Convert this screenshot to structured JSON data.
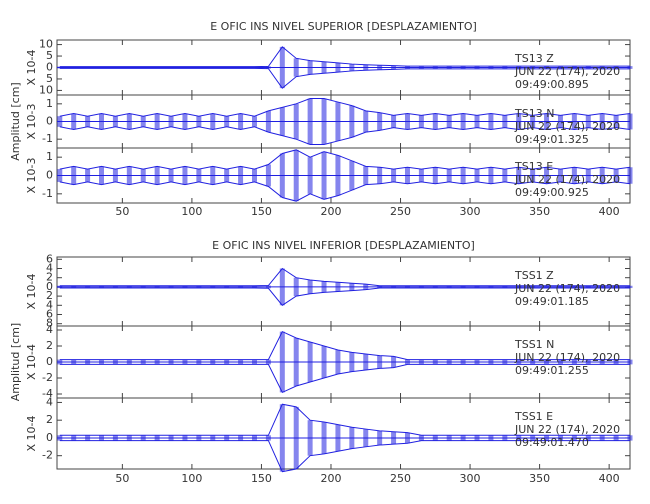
{
  "chart_data": [
    {
      "type": "line",
      "title": "E OFIC INS NIVEL SUPERIOR [DESPLAZAMIENTO]",
      "ylabel": "Amplitud [cm]",
      "xlim": [
        3,
        415
      ],
      "xticks": [
        50,
        100,
        150,
        200,
        250,
        300,
        350,
        400
      ],
      "x": [
        5,
        15,
        25,
        35,
        45,
        55,
        65,
        75,
        85,
        95,
        105,
        115,
        125,
        135,
        145,
        155,
        165,
        175,
        185,
        195,
        205,
        215,
        225,
        235,
        245,
        255,
        265,
        275,
        285,
        295,
        305,
        315,
        325,
        335,
        345,
        355,
        365,
        375,
        385,
        395,
        405,
        415
      ],
      "panels": [
        {
          "multiplier": "X 10-4",
          "color": "#2020e0",
          "ylim": [
            -12,
            12
          ],
          "yticks": [
            {
              "value": 10,
              "label": "10"
            },
            5,
            0,
            {
              "value": -5,
              "label": "5"
            },
            {
              "value": -10,
              "label": "10"
            }
          ],
          "annotations": [
            "TS13   Z",
            "JUN 22 (174), 2020",
            "09:49:00.895"
          ],
          "values": [
            0.4,
            0.4,
            0.4,
            0.4,
            0.4,
            0.4,
            0.4,
            0.4,
            0.4,
            0.4,
            0.4,
            0.4,
            0.4,
            0.4,
            0.4,
            0.5,
            9,
            4,
            3,
            2.5,
            2,
            1.5,
            1.2,
            1,
            0.8,
            0.6,
            0.6,
            0.6,
            0.6,
            0.6,
            0.6,
            0.6,
            0.6,
            0.6,
            0.6,
            0.6,
            0.6,
            0.6,
            0.6,
            0.6,
            0.6,
            0.6
          ]
        },
        {
          "multiplier": "X 10-3",
          "color": "#2020e0",
          "ylim": [
            -1.5,
            1.5
          ],
          "yticks": [
            1,
            0,
            -1
          ],
          "annotations": [
            "TS13   N",
            "JUN 22 (174), 2020",
            "09:49:01.325"
          ],
          "values": [
            0.3,
            0.45,
            0.3,
            0.45,
            0.3,
            0.45,
            0.3,
            0.45,
            0.3,
            0.45,
            0.3,
            0.45,
            0.3,
            0.45,
            0.3,
            0.6,
            0.8,
            1.0,
            1.3,
            1.3,
            1.1,
            0.9,
            0.6,
            0.5,
            0.35,
            0.45,
            0.35,
            0.45,
            0.35,
            0.45,
            0.35,
            0.45,
            0.35,
            0.45,
            0.35,
            0.45,
            0.35,
            0.45,
            0.35,
            0.45,
            0.35,
            0.45
          ]
        },
        {
          "multiplier": "X 10-3",
          "color": "#2020e0",
          "ylim": [
            -1.5,
            1.5
          ],
          "yticks": [
            1,
            0,
            -1
          ],
          "annotations": [
            "TS13   E",
            "JUN 22 (174), 2020",
            "09:49:00.925"
          ],
          "values": [
            0.35,
            0.5,
            0.35,
            0.5,
            0.35,
            0.5,
            0.35,
            0.5,
            0.35,
            0.5,
            0.35,
            0.5,
            0.35,
            0.5,
            0.35,
            0.6,
            1.2,
            1.4,
            1.0,
            1.3,
            1.1,
            0.8,
            0.5,
            0.45,
            0.35,
            0.45,
            0.35,
            0.45,
            0.35,
            0.45,
            0.35,
            0.45,
            0.35,
            0.45,
            0.35,
            0.45,
            0.35,
            0.45,
            0.35,
            0.45,
            0.35,
            0.45
          ]
        }
      ]
    },
    {
      "type": "line",
      "title": "E OFIC INS NIVEL INFERIOR [DESPLAZAMIENTO]",
      "ylabel": "Amplitud [cm]",
      "xlim": [
        3,
        415
      ],
      "xticks": [
        50,
        100,
        150,
        200,
        250,
        300,
        350,
        400
      ],
      "x": [
        5,
        15,
        25,
        35,
        45,
        55,
        65,
        75,
        85,
        95,
        105,
        115,
        125,
        135,
        145,
        155,
        165,
        175,
        185,
        195,
        205,
        215,
        225,
        235,
        245,
        255,
        265,
        275,
        285,
        295,
        305,
        315,
        325,
        335,
        345,
        355,
        365,
        375,
        385,
        395,
        405,
        415
      ],
      "panels": [
        {
          "multiplier": "X 10-4",
          "color": "#2020e0",
          "ylim": [
            -8.5,
            6.5
          ],
          "yticks": [
            6,
            4,
            2,
            0,
            {
              "value": -2,
              "label": "2"
            },
            {
              "value": -4,
              "label": "4"
            },
            {
              "value": -6,
              "label": "6"
            },
            {
              "value": -8,
              "label": "8"
            }
          ],
          "annotations": [
            "TSS1   Z",
            "JUN 22 (174), 2020",
            "09:49:01.185"
          ],
          "values": [
            0.25,
            0.25,
            0.25,
            0.25,
            0.25,
            0.25,
            0.25,
            0.25,
            0.25,
            0.25,
            0.25,
            0.25,
            0.25,
            0.25,
            0.25,
            0.3,
            4,
            2,
            1.5,
            1.2,
            1,
            0.8,
            0.6,
            0.25,
            0.25,
            0.25,
            0.25,
            0.25,
            0.25,
            0.25,
            0.25,
            0.25,
            0.25,
            0.25,
            0.25,
            0.25,
            0.25,
            0.25,
            0.25,
            0.25,
            0.25,
            0.25
          ]
        },
        {
          "multiplier": "X 10-4",
          "color": "#2020e0",
          "ylim": [
            -4.5,
            4.5
          ],
          "yticks": [
            4,
            2,
            0,
            -2,
            -4
          ],
          "annotations": [
            "TSS1   N",
            "JUN 22 (174), 2020",
            "09:49:01.255"
          ],
          "values": [
            0.3,
            0.3,
            0.3,
            0.3,
            0.3,
            0.3,
            0.3,
            0.3,
            0.3,
            0.3,
            0.3,
            0.3,
            0.3,
            0.3,
            0.3,
            0.3,
            3.8,
            3,
            2.5,
            2,
            1.5,
            1.2,
            1,
            0.8,
            0.7,
            0.3,
            0.3,
            0.3,
            0.3,
            0.3,
            0.3,
            0.3,
            0.3,
            0.3,
            0.3,
            0.3,
            0.3,
            0.3,
            0.3,
            0.3,
            0.3,
            0.3
          ]
        },
        {
          "multiplier": "X 10-4",
          "color": "#2020e0",
          "ylim": [
            -3.5,
            4.5
          ],
          "yticks": [
            4,
            2,
            0,
            -2
          ],
          "annotations": [
            "TSS1   E",
            "JUN 22 (174), 2020",
            "09:49:01.470"
          ],
          "values": [
            0.3,
            0.3,
            0.3,
            0.3,
            0.3,
            0.3,
            0.3,
            0.3,
            0.3,
            0.3,
            0.3,
            0.3,
            0.3,
            0.3,
            0.3,
            0.3,
            3.8,
            3.5,
            2,
            1.8,
            1.5,
            1.2,
            1,
            0.8,
            0.7,
            0.6,
            0.3,
            0.3,
            0.3,
            0.3,
            0.3,
            0.3,
            0.3,
            0.3,
            0.3,
            0.3,
            0.3,
            0.3,
            0.3,
            0.3,
            0.3,
            0.3
          ]
        }
      ]
    }
  ]
}
